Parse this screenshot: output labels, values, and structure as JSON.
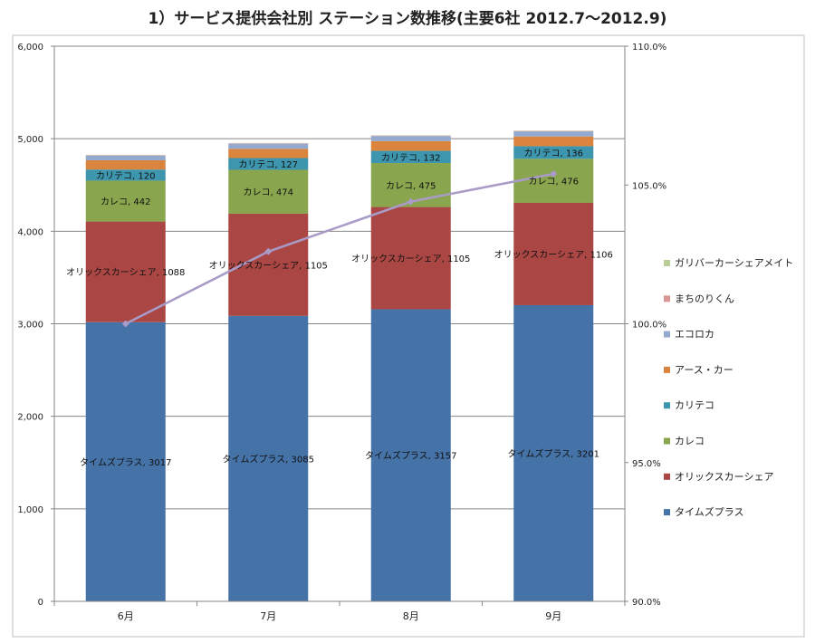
{
  "chart_data": {
    "type": "bar",
    "title": "1）サービス提供会社別 ステーション数推移(主要6社 2012.7～2012.9)",
    "categories": [
      "6月",
      "7月",
      "8月",
      "9月"
    ],
    "y_left": {
      "min": 0,
      "max": 6000,
      "step": 1000,
      "tick_labels": [
        "0",
        "1,000",
        "2,000",
        "3,000",
        "4,000",
        "5,000",
        "6,000"
      ]
    },
    "y_right": {
      "min": 90.0,
      "max": 110.0,
      "step": 5.0,
      "tick_labels": [
        "90.0%",
        "95.0%",
        "100.0%",
        "105.0%",
        "110.0%"
      ]
    },
    "grid": true,
    "legend_position": "right",
    "series": [
      {
        "name": "タイムズプラス",
        "color": "#4572A7",
        "values": [
          3017,
          3085,
          3157,
          3201
        ],
        "show_labels": true,
        "labels": [
          "タイムズプラス, 3017",
          "タイムズプラス, 3085",
          "タイムズプラス, 3157",
          "タイムズプラス, 3201"
        ]
      },
      {
        "name": "オリックスカーシェア",
        "color": "#AA4643",
        "values": [
          1088,
          1105,
          1105,
          1106
        ],
        "show_labels": true,
        "labels": [
          "オリックスカーシェア, 1088",
          "オリックスカーシェア, 1105",
          "オリックスカーシェア, 1105",
          "オリックスカーシェア, 1106"
        ]
      },
      {
        "name": "カレコ",
        "color": "#89A54E",
        "values": [
          442,
          474,
          475,
          476
        ],
        "show_labels": true,
        "labels": [
          "カレコ, 442",
          "カレコ, 474",
          "カレコ, 475",
          "カレコ, 476"
        ]
      },
      {
        "name": "カリテコ",
        "color": "#3D96AE",
        "values": [
          120,
          127,
          132,
          136
        ],
        "show_labels": true,
        "labels": [
          "カリテコ, 120",
          "カリテコ, 127",
          "カリテコ, 132",
          "カリテコ, 136"
        ]
      },
      {
        "name": "アース・カー",
        "color": "#DB843D",
        "values": [
          100,
          100,
          105,
          105
        ],
        "show_labels": false
      },
      {
        "name": "エコロカ",
        "color": "#93A9CF",
        "values": [
          50,
          55,
          55,
          55
        ],
        "show_labels": false
      },
      {
        "name": "まちのりくん",
        "color": "#D99694",
        "values": [
          5,
          5,
          5,
          5
        ],
        "show_labels": false
      },
      {
        "name": "ガリバーカーシェアメイト",
        "color": "#B9CD96",
        "values": [
          3,
          3,
          3,
          3
        ],
        "show_labels": false
      }
    ],
    "line_series": {
      "color": "#A99BC8",
      "axis": "right",
      "values": [
        100.0,
        102.6,
        104.4,
        105.4
      ]
    }
  }
}
